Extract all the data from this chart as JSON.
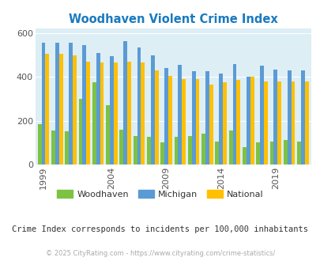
{
  "title": "Woodhaven Violent Crime Index",
  "woodhaven": [
    185,
    155,
    150,
    300,
    375,
    270,
    160,
    130,
    125,
    100,
    125,
    130,
    140,
    105,
    155,
    80,
    100,
    105,
    110,
    105
  ],
  "michigan": [
    555,
    555,
    555,
    545,
    510,
    495,
    565,
    535,
    500,
    440,
    455,
    425,
    425,
    415,
    460,
    400,
    450,
    435,
    430,
    430
  ],
  "national": [
    505,
    505,
    500,
    470,
    465,
    465,
    470,
    465,
    430,
    405,
    390,
    390,
    365,
    375,
    385,
    400,
    380,
    380,
    380,
    380
  ],
  "woodhaven_color": "#7dc242",
  "michigan_color": "#5b9bd5",
  "national_color": "#ffc000",
  "bg_color": "#ddeef5",
  "yticks": [
    0,
    200,
    400,
    600
  ],
  "xtick_positions": [
    0,
    5,
    9,
    13,
    17
  ],
  "xtick_labels": [
    "1999",
    "2004",
    "2009",
    "2014",
    "2019"
  ],
  "subtitle": "Crime Index corresponds to incidents per 100,000 inhabitants",
  "footer": "© 2025 CityRating.com - https://www.cityrating.com/crime-statistics/",
  "legend_labels": [
    "Woodhaven",
    "Michigan",
    "National"
  ]
}
